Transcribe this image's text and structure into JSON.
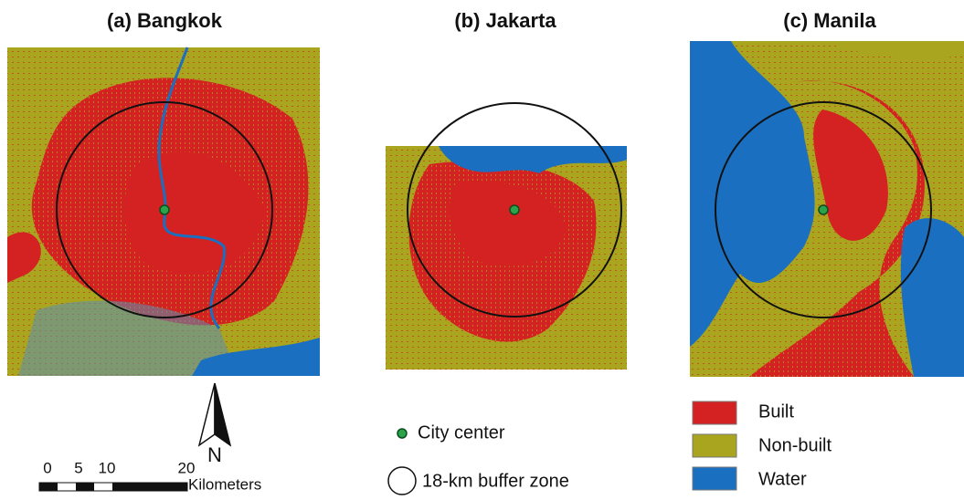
{
  "panels": [
    {
      "title": "(a) Bangkok"
    },
    {
      "title": "(b) Jakarta"
    },
    {
      "title": "(c) Manila"
    }
  ],
  "north_arrow": {
    "label": "N"
  },
  "scale_bar": {
    "labels": [
      "0",
      "5",
      "10",
      "20"
    ],
    "unit": "Kilometers"
  },
  "symbols": {
    "city_center": "City center",
    "buffer_zone": "18-km buffer zone"
  },
  "legend": {
    "items": [
      "Built",
      "Non-built",
      "Water"
    ]
  }
}
